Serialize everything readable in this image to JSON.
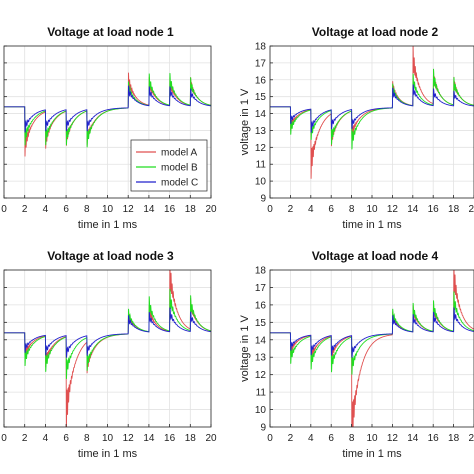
{
  "chart_data": [
    {
      "type": "line",
      "title": "Voltage at load node 1",
      "xlabel": "time in 1 ms",
      "ylabel": "",
      "xlim": [
        0,
        20
      ],
      "ylim": [
        9,
        18
      ],
      "xticks": [
        "0",
        "2",
        "4",
        "6",
        "8",
        "10",
        "12",
        "14",
        "16",
        "18",
        "20"
      ],
      "yticks": [
        "9",
        "10",
        "11",
        "12",
        "13",
        "14",
        "15",
        "16",
        "17",
        "18"
      ],
      "grid": true,
      "legend": "inside right",
      "series": [
        {
          "name": "model A",
          "color": "#e05050",
          "events": [
            {
              "t": 2,
              "a": -2.3
            },
            {
              "t": 4,
              "a": -1.7
            },
            {
              "t": 6,
              "a": -1.6
            },
            {
              "t": 8,
              "a": -1.6
            },
            {
              "t": 12,
              "a": 1.6
            },
            {
              "t": 14,
              "a": 1.3
            },
            {
              "t": 16,
              "a": 1.3
            },
            {
              "t": 18,
              "a": 1.3
            }
          ]
        },
        {
          "name": "model B",
          "color": "#22dd22",
          "events": [
            {
              "t": 2,
              "a": -1.8
            },
            {
              "t": 4,
              "a": -1.6
            },
            {
              "t": 6,
              "a": -1.6
            },
            {
              "t": 8,
              "a": -1.7
            },
            {
              "t": 12,
              "a": 1.2
            },
            {
              "t": 14,
              "a": 1.5
            },
            {
              "t": 16,
              "a": 1.5
            },
            {
              "t": 18,
              "a": 1.3
            }
          ]
        },
        {
          "name": "model C",
          "color": "#2222cc",
          "events": [
            {
              "t": 2,
              "a": -1.2
            },
            {
              "t": 4,
              "a": -1.0
            },
            {
              "t": 6,
              "a": -1.0
            },
            {
              "t": 8,
              "a": -1.0
            },
            {
              "t": 12,
              "a": 1.0
            },
            {
              "t": 14,
              "a": 0.9
            },
            {
              "t": 16,
              "a": 0.9
            },
            {
              "t": 18,
              "a": 0.8
            }
          ]
        }
      ]
    },
    {
      "type": "line",
      "title": "Voltage at load node 2",
      "xlabel": "time in 1 ms",
      "ylabel": "voltage in 1 V",
      "xlim": [
        0,
        20
      ],
      "ylim": [
        9,
        18
      ],
      "xticks": [
        "0",
        "2",
        "4",
        "6",
        "8",
        "10",
        "12",
        "14",
        "16",
        "18",
        "20"
      ],
      "yticks": [
        "9",
        "10",
        "11",
        "12",
        "13",
        "14",
        "15",
        "16",
        "17",
        "18"
      ],
      "grid": true,
      "series": [
        {
          "name": "model A",
          "color": "#e05050",
          "events": [
            {
              "t": 2,
              "a": -1.1
            },
            {
              "t": 4,
              "a": -3.2
            },
            {
              "t": 6,
              "a": -1.5
            },
            {
              "t": 8,
              "a": -1.3
            },
            {
              "t": 12,
              "a": 1.2
            },
            {
              "t": 14,
              "a": 2.8
            },
            {
              "t": 16,
              "a": 1.6
            },
            {
              "t": 18,
              "a": 1.3
            }
          ]
        },
        {
          "name": "model B",
          "color": "#22dd22",
          "events": [
            {
              "t": 2,
              "a": -1.3
            },
            {
              "t": 4,
              "a": -1.4
            },
            {
              "t": 6,
              "a": -1.6
            },
            {
              "t": 8,
              "a": -1.8
            },
            {
              "t": 12,
              "a": 1.1
            },
            {
              "t": 14,
              "a": 1.5
            },
            {
              "t": 16,
              "a": 1.7
            },
            {
              "t": 18,
              "a": 1.3
            }
          ]
        },
        {
          "name": "model C",
          "color": "#2222cc",
          "events": [
            {
              "t": 2,
              "a": -0.8
            },
            {
              "t": 4,
              "a": -1.1
            },
            {
              "t": 6,
              "a": -0.9
            },
            {
              "t": 8,
              "a": -0.9
            },
            {
              "t": 12,
              "a": 0.9
            },
            {
              "t": 14,
              "a": 1.0
            },
            {
              "t": 16,
              "a": 0.8
            },
            {
              "t": 18,
              "a": 0.7
            }
          ]
        }
      ]
    },
    {
      "type": "line",
      "title": "Voltage at load node 3",
      "xlabel": "time in 1 ms",
      "ylabel": "",
      "xlim": [
        0,
        20
      ],
      "ylim": [
        9,
        18
      ],
      "xticks": [
        "0",
        "2",
        "4",
        "6",
        "8",
        "10",
        "12",
        "14",
        "16",
        "18",
        "20"
      ],
      "yticks": [
        "9",
        "10",
        "11",
        "12",
        "13",
        "14",
        "15",
        "16",
        "17",
        "18"
      ],
      "grid": true,
      "series": [
        {
          "name": "model A",
          "color": "#e05050",
          "events": [
            {
              "t": 2,
              "a": -1.2
            },
            {
              "t": 4,
              "a": -1.4
            },
            {
              "t": 6,
              "a": -4.3
            },
            {
              "t": 8,
              "a": -1.4
            },
            {
              "t": 12,
              "a": 1.0
            },
            {
              "t": 14,
              "a": 1.2
            },
            {
              "t": 16,
              "a": 3.3
            },
            {
              "t": 18,
              "a": 1.4
            }
          ]
        },
        {
          "name": "model B",
          "color": "#22dd22",
          "events": [
            {
              "t": 2,
              "a": -1.5
            },
            {
              "t": 4,
              "a": -1.6
            },
            {
              "t": 6,
              "a": -1.9
            },
            {
              "t": 8,
              "a": -1.5
            },
            {
              "t": 12,
              "a": 1.1
            },
            {
              "t": 14,
              "a": 1.6
            },
            {
              "t": 16,
              "a": 1.9
            },
            {
              "t": 18,
              "a": 1.6
            }
          ]
        },
        {
          "name": "model C",
          "color": "#2222cc",
          "events": [
            {
              "t": 2,
              "a": -0.9
            },
            {
              "t": 4,
              "a": -0.9
            },
            {
              "t": 6,
              "a": -1.0
            },
            {
              "t": 8,
              "a": -0.9
            },
            {
              "t": 12,
              "a": 0.8
            },
            {
              "t": 14,
              "a": 0.9
            },
            {
              "t": 16,
              "a": 1.1
            },
            {
              "t": 18,
              "a": 0.9
            }
          ]
        }
      ]
    },
    {
      "type": "line",
      "title": "Voltage at load node 4",
      "xlabel": "time in 1 ms",
      "ylabel": "voltage in 1 V",
      "xlim": [
        0,
        20
      ],
      "ylim": [
        9,
        18
      ],
      "xticks": [
        "0",
        "2",
        "4",
        "6",
        "8",
        "10",
        "12",
        "14",
        "16",
        "18",
        "20"
      ],
      "yticks": [
        "9",
        "10",
        "11",
        "12",
        "13",
        "14",
        "15",
        "16",
        "17",
        "18"
      ],
      "grid": true,
      "series": [
        {
          "name": "model A",
          "color": "#e05050",
          "events": [
            {
              "t": 2,
              "a": -1.0
            },
            {
              "t": 4,
              "a": -1.2
            },
            {
              "t": 6,
              "a": -1.1
            },
            {
              "t": 8,
              "a": -5.3
            },
            {
              "t": 12,
              "a": 1.0
            },
            {
              "t": 14,
              "a": 1.2
            },
            {
              "t": 16,
              "a": 1.3
            },
            {
              "t": 18,
              "a": 3.2
            }
          ]
        },
        {
          "name": "model B",
          "color": "#22dd22",
          "events": [
            {
              "t": 2,
              "a": -1.4
            },
            {
              "t": 4,
              "a": -1.5
            },
            {
              "t": 6,
              "a": -1.6
            },
            {
              "t": 8,
              "a": -1.7
            },
            {
              "t": 12,
              "a": 1.1
            },
            {
              "t": 14,
              "a": 1.3
            },
            {
              "t": 16,
              "a": 1.4
            },
            {
              "t": 18,
              "a": 1.8
            }
          ]
        },
        {
          "name": "model C",
          "color": "#2222cc",
          "events": [
            {
              "t": 2,
              "a": -0.8
            },
            {
              "t": 4,
              "a": -0.9
            },
            {
              "t": 6,
              "a": -0.9
            },
            {
              "t": 8,
              "a": -1.0
            },
            {
              "t": 12,
              "a": 0.8
            },
            {
              "t": 14,
              "a": 0.8
            },
            {
              "t": 16,
              "a": 0.9
            },
            {
              "t": 18,
              "a": 1.1
            }
          ]
        }
      ]
    }
  ]
}
